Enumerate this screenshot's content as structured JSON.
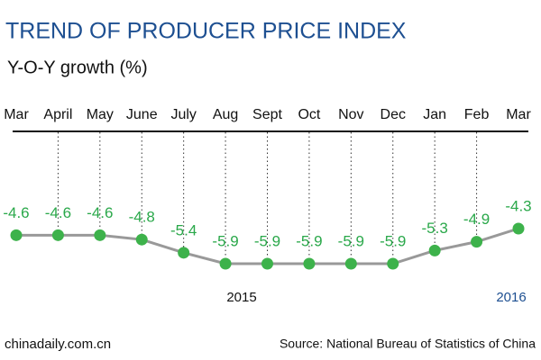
{
  "chart_data": {
    "type": "line",
    "title": "TREND OF PRODUCER PRICE INDEX",
    "subtitle": "Y-O-Y growth (%)",
    "categories": [
      "Mar",
      "April",
      "May",
      "June",
      "July",
      "Aug",
      "Sept",
      "Oct",
      "Nov",
      "Dec",
      "Jan",
      "Feb",
      "Mar"
    ],
    "values": [
      -4.6,
      -4.6,
      -4.6,
      -4.8,
      -5.4,
      -5.9,
      -5.9,
      -5.9,
      -5.9,
      -5.9,
      -5.3,
      -4.9,
      -4.3
    ],
    "line_color": "#999999",
    "marker_color": "#3db24b",
    "label_color": "#2aa84a",
    "annotations": [
      "2015",
      "2016"
    ],
    "credit": "chinadaily.com.cn",
    "source": "Source: National Bureau of Statistics of China"
  }
}
